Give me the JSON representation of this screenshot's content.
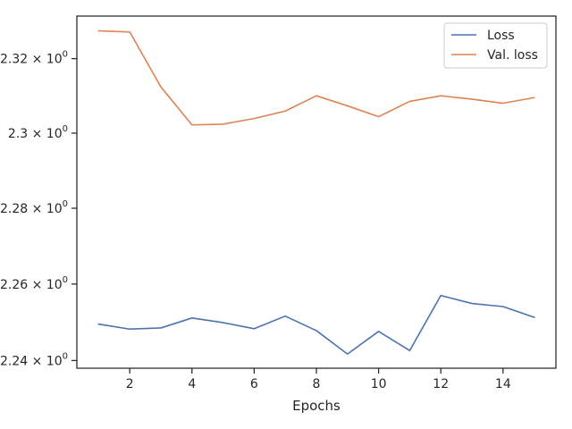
{
  "chart_data": {
    "type": "line",
    "title": "",
    "xlabel": "Epochs",
    "ylabel": "",
    "x": [
      1,
      2,
      3,
      4,
      5,
      6,
      7,
      8,
      9,
      10,
      11,
      12,
      13,
      14,
      15
    ],
    "series": [
      {
        "name": "Loss",
        "color": "#4c72b0",
        "values": [
          2.2495,
          2.2482,
          2.2485,
          2.2511,
          2.2499,
          2.2483,
          2.2516,
          2.2478,
          2.2417,
          2.2476,
          2.2426,
          2.257,
          2.2549,
          2.2541,
          2.2513
        ]
      },
      {
        "name": "Val. loss",
        "color": "#dd8452",
        "values": [
          2.3275,
          2.3272,
          2.3124,
          2.3022,
          2.3024,
          2.3039,
          2.3059,
          2.31,
          2.3073,
          2.3044,
          2.3085,
          2.31,
          2.3091,
          2.308,
          2.3095
        ]
      }
    ],
    "xlim": [
      0.3,
      15.7
    ],
    "ylim": [
      2.238,
      2.3315
    ],
    "y_scale": "log",
    "x_ticks": [
      2,
      4,
      6,
      8,
      10,
      12,
      14
    ],
    "x_tick_labels": [
      "2",
      "4",
      "6",
      "8",
      "10",
      "12",
      "14"
    ],
    "y_ticks": [
      2.24,
      2.26,
      2.28,
      2.3,
      2.32
    ],
    "y_tick_labels": [
      {
        "mantissa": "2.24",
        "base": "10",
        "exponent": "0"
      },
      {
        "mantissa": "2.26",
        "base": "10",
        "exponent": "0"
      },
      {
        "mantissa": "2.28",
        "base": "10",
        "exponent": "0"
      },
      {
        "mantissa": "2.3",
        "base": "10",
        "exponent": "0"
      },
      {
        "mantissa": "2.32",
        "base": "10",
        "exponent": "0"
      }
    ],
    "times_symbol": "×",
    "grid": false,
    "legend_position": "top-right"
  }
}
